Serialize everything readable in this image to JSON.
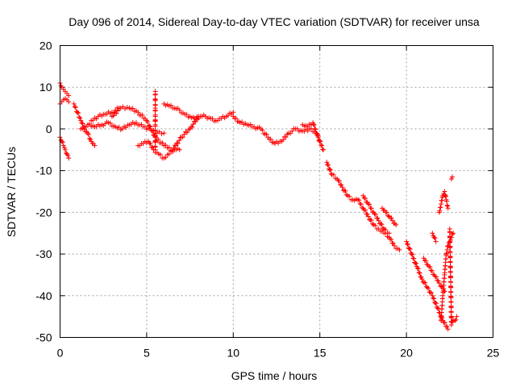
{
  "chart_data": {
    "type": "scatter",
    "title": "Day 096 of 2014, Sidereal Day-to-day VTEC variation (SDTVAR) for receiver unsa",
    "xlabel": "GPS time / hours",
    "ylabel": "SDTVAR / TECUs",
    "xlim": [
      0,
      25
    ],
    "ylim": [
      -50,
      20
    ],
    "xticks": [
      0,
      5,
      10,
      15,
      20,
      25
    ],
    "yticks": [
      -50,
      -40,
      -30,
      -20,
      -10,
      0,
      10,
      20
    ],
    "grid": true,
    "marker": "+",
    "color": "#ff0000",
    "series": [
      {
        "name": "SDTVAR",
        "segments": [
          {
            "x": [
              0.0,
              0.1,
              0.2,
              0.3,
              0.4,
              0.5
            ],
            "y": [
              -2,
              -3,
              -4,
              -5,
              -6,
              -7
            ]
          },
          {
            "x": [
              0.0,
              0.1,
              0.2,
              0.3,
              0.4,
              0.5
            ],
            "y": [
              11,
              10,
              9.5,
              9,
              8.5,
              8
            ]
          },
          {
            "x": [
              0.0,
              0.1,
              0.2,
              0.3,
              0.4,
              0.5
            ],
            "y": [
              6,
              6.5,
              7,
              7.3,
              7,
              6.5
            ]
          },
          {
            "x": [
              0.8,
              1.0,
              1.2,
              1.4,
              1.6,
              1.8,
              2.0
            ],
            "y": [
              6,
              4,
              2,
              0,
              -1,
              -3,
              -4
            ]
          },
          {
            "x": [
              1.2,
              1.6,
              2.0,
              2.4,
              2.8,
              3.2,
              3.6,
              4.0,
              4.4,
              4.8,
              5.2,
              5.6,
              6.0
            ],
            "y": [
              0,
              1,
              0.5,
              1,
              1.5,
              0.5,
              0,
              1,
              1.5,
              0.5,
              0,
              -1,
              -1
            ]
          },
          {
            "x": [
              1.8,
              2.2,
              2.6,
              3.0,
              3.4
            ],
            "y": [
              2,
              3,
              3.5,
              4,
              5
            ]
          },
          {
            "x": [
              3.0,
              3.5,
              4.0,
              4.5,
              5.0,
              5.5,
              6.0,
              6.5,
              7.0,
              7.5,
              8.0
            ],
            "y": [
              3,
              5,
              5,
              4,
              2,
              -2,
              -4,
              -5,
              -2,
              0,
              3
            ]
          },
          {
            "x": [
              4.5,
              4.8,
              5.1,
              5.4,
              5.7,
              6.0,
              6.3,
              6.6,
              6.9
            ],
            "y": [
              -4,
              -3.5,
              -3,
              -5,
              -6,
              -7,
              -6,
              -5,
              -5
            ]
          },
          {
            "x": [
              5.5,
              5.5,
              5.5,
              5.5,
              5.5,
              5.5,
              5.5,
              5.5
            ],
            "y": [
              9,
              7,
              5,
              3,
              1,
              -1,
              -3,
              -5
            ]
          },
          {
            "x": [
              6.0,
              6.3,
              6.6,
              6.9,
              7.2,
              7.5,
              7.8,
              8.1,
              8.4,
              8.7,
              9.0,
              9.3,
              9.6,
              10.0
            ],
            "y": [
              6,
              5.5,
              5,
              4.5,
              3.5,
              3,
              2.5,
              3,
              3,
              2.5,
              2,
              2.5,
              3,
              4
            ]
          },
          {
            "x": [
              10.0,
              10.4,
              10.8,
              11.2,
              11.6,
              12.0,
              12.4,
              12.8,
              13.2,
              13.6,
              14.0,
              14.4,
              14.8,
              15.0
            ],
            "y": [
              3,
              1.5,
              1,
              0.5,
              0,
              -2,
              -3.5,
              -3,
              -1,
              0,
              -0.5,
              0,
              -1,
              -3
            ]
          },
          {
            "x": [
              14.0,
              14.3,
              14.6,
              14.9,
              15.2
            ],
            "y": [
              1,
              0.5,
              1.5,
              -2,
              -5
            ]
          },
          {
            "x": [
              15.4,
              15.7,
              16.0,
              16.3,
              16.6,
              16.9,
              17.2,
              17.5,
              17.8,
              18.1,
              18.4,
              18.7,
              19.0,
              19.3,
              19.6
            ],
            "y": [
              -8,
              -11,
              -12,
              -14,
              -16,
              -17,
              -17,
              -19,
              -21,
              -23,
              -24,
              -25,
              -26,
              -28,
              -29
            ]
          },
          {
            "x": [
              17.5,
              17.8,
              18.1,
              18.4,
              18.7,
              19.0
            ],
            "y": [
              -16,
              -18,
              -20,
              -22,
              -24,
              -25
            ]
          },
          {
            "x": [
              18.6,
              18.8,
              19.0,
              19.2,
              19.4
            ],
            "y": [
              -19,
              -20,
              -21,
              -22,
              -23
            ]
          },
          {
            "x": [
              20.0,
              20.3,
              20.6,
              20.9,
              21.2,
              21.5,
              21.8,
              22.1,
              22.4
            ],
            "y": [
              -27,
              -30,
              -33,
              -36,
              -38,
              -40,
              -43,
              -46,
              -48
            ]
          },
          {
            "x": [
              21.0,
              21.3,
              21.6,
              21.9,
              22.2
            ],
            "y": [
              -31,
              -33,
              -35,
              -37,
              -39
            ]
          },
          {
            "x": [
              21.5,
              21.6,
              21.7
            ],
            "y": [
              -25,
              -26,
              -27
            ]
          },
          {
            "x": [
              22.0,
              22.1,
              22.2,
              22.3,
              22.4,
              22.5,
              22.6,
              22.7
            ],
            "y": [
              -46,
              -40,
              -35,
              -30,
              -28,
              -27,
              -26,
              -25
            ]
          },
          {
            "x": [
              21.9,
              22.0,
              22.1,
              22.2,
              22.3,
              22.4
            ],
            "y": [
              -20,
              -18,
              -16,
              -15,
              -17,
              -19
            ]
          },
          {
            "x": [
              22.5,
              22.6,
              22.7,
              22.8,
              22.9
            ],
            "y": [
              -24,
              -47,
              -46,
              -46,
              -45
            ]
          },
          {
            "x": [
              22.6,
              22.65
            ],
            "y": [
              -12,
              -11.5
            ]
          }
        ]
      }
    ]
  }
}
